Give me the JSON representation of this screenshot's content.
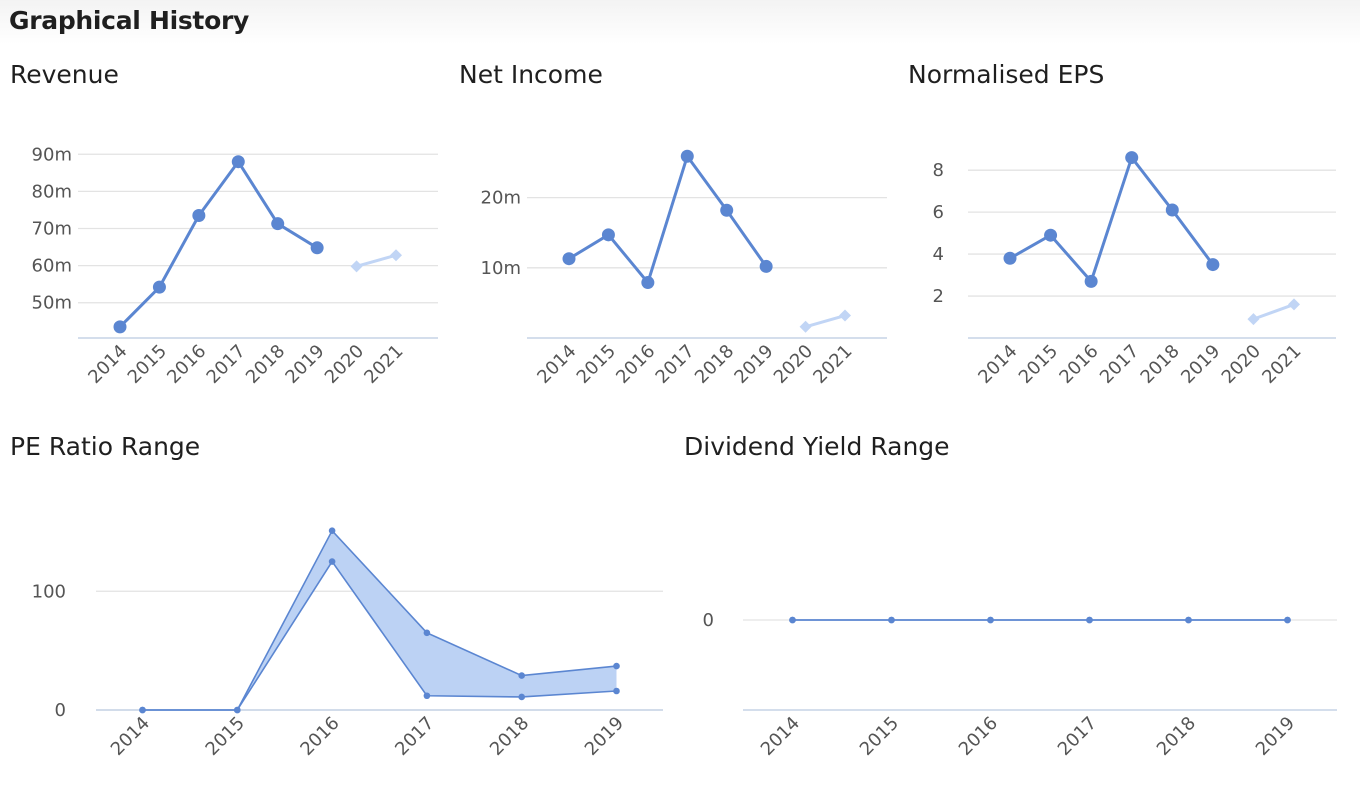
{
  "page": {
    "title": "Graphical History"
  },
  "chart_data": [
    {
      "id": "revenue",
      "type": "line",
      "title": "Revenue",
      "categories": [
        "2014",
        "2015",
        "2016",
        "2017",
        "2018",
        "2019",
        "2020",
        "2021"
      ],
      "series": [
        {
          "role": "actual",
          "values": [
            43.5,
            54.2,
            73.5,
            88.0,
            71.3,
            64.8,
            null,
            null
          ],
          "color": "#5b86d1",
          "marker": "circle"
        },
        {
          "role": "forecast",
          "values": [
            null,
            null,
            null,
            null,
            null,
            null,
            59.8,
            62.8
          ],
          "color": "#c1d5f5",
          "marker": "diamond"
        }
      ],
      "yticks": [
        50,
        60,
        70,
        80,
        90
      ],
      "ytick_labels": [
        "50m",
        "60m",
        "70m",
        "80m",
        "90m"
      ],
      "ylim": [
        40.5,
        92.5
      ],
      "grid": true
    },
    {
      "id": "net_income",
      "type": "line",
      "title": "Net Income",
      "categories": [
        "2014",
        "2015",
        "2016",
        "2017",
        "2018",
        "2019",
        "2020",
        "2021"
      ],
      "series": [
        {
          "role": "actual",
          "values": [
            11.3,
            14.7,
            7.9,
            25.9,
            18.2,
            10.2,
            null,
            null
          ],
          "color": "#5b86d1",
          "marker": "circle"
        },
        {
          "role": "forecast",
          "values": [
            null,
            null,
            null,
            null,
            null,
            null,
            1.6,
            3.2
          ],
          "color": "#c1d5f5",
          "marker": "diamond"
        }
      ],
      "yticks": [
        10,
        20
      ],
      "ytick_labels": [
        "10m",
        "20m"
      ],
      "ylim": [
        0,
        27.5
      ],
      "grid": true
    },
    {
      "id": "normalised_eps",
      "type": "line",
      "title": "Normalised EPS",
      "categories": [
        "2014",
        "2015",
        "2016",
        "2017",
        "2018",
        "2019",
        "2020",
        "2021"
      ],
      "series": [
        {
          "role": "actual",
          "values": [
            3.8,
            4.9,
            2.7,
            8.6,
            6.1,
            3.5,
            null,
            null
          ],
          "color": "#5b86d1",
          "marker": "circle"
        },
        {
          "role": "forecast",
          "values": [
            null,
            null,
            null,
            null,
            null,
            null,
            0.9,
            1.6
          ],
          "color": "#c1d5f5",
          "marker": "diamond"
        }
      ],
      "yticks": [
        2,
        4,
        6,
        8
      ],
      "ytick_labels": [
        "2",
        "4",
        "6",
        "8"
      ],
      "ylim": [
        0,
        9.2
      ],
      "grid": true
    },
    {
      "id": "pe_ratio_range",
      "type": "area",
      "title": "PE Ratio Range",
      "categories": [
        "2014",
        "2015",
        "2016",
        "2017",
        "2018",
        "2019"
      ],
      "series": [
        {
          "role": "high",
          "values": [
            0,
            0,
            151,
            65,
            29,
            37
          ],
          "color": "#5b86d1"
        },
        {
          "role": "low",
          "values": [
            0,
            0,
            125,
            12,
            11,
            16
          ],
          "color": "#5b86d1"
        }
      ],
      "fill": "#bcd2f4",
      "yticks": [
        0,
        100
      ],
      "ytick_labels": [
        "0",
        "100"
      ],
      "ylim": [
        0,
        160
      ],
      "grid": true
    },
    {
      "id": "dividend_yield_range",
      "type": "area",
      "title": "Dividend Yield Range",
      "categories": [
        "2014",
        "2015",
        "2016",
        "2017",
        "2018",
        "2019"
      ],
      "series": [
        {
          "role": "high",
          "values": [
            0,
            0,
            0,
            0,
            0,
            0
          ],
          "color": "#5b86d1"
        },
        {
          "role": "low",
          "values": [
            0,
            0,
            0,
            0,
            0,
            0
          ],
          "color": "#5b86d1"
        }
      ],
      "fill": "#bcd2f4",
      "yticks": [
        0
      ],
      "ytick_labels": [
        "0"
      ],
      "ylim": [
        -1,
        1
      ],
      "grid": true
    }
  ]
}
